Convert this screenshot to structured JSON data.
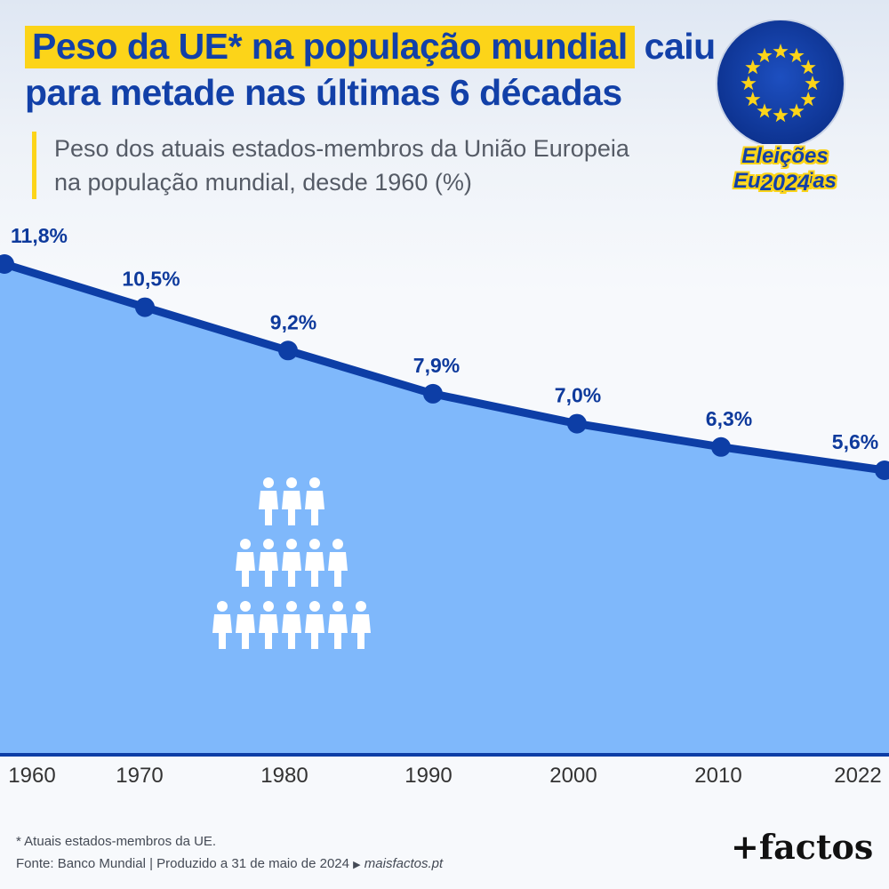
{
  "header": {
    "title_highlight": "Peso da UE* na população mundial",
    "title_rest": "caiu",
    "title_line2": "para metade nas últimas 6 décadas",
    "subtitle_line1": "Peso dos atuais estados-membros da União Europeia",
    "subtitle_line2": "na população mundial, desde 1960 (%)"
  },
  "badge": {
    "line1": "Eleições Europeias",
    "line2": "2024",
    "icon": "eu-flag-stars-icon",
    "colors": {
      "blue": "#1240a8",
      "yellow": "#fcd419"
    }
  },
  "chart_data": {
    "type": "area",
    "title": "Peso dos atuais estados-membros da União Europeia na população mundial, desde 1960 (%)",
    "x": [
      "1960",
      "1970",
      "1980",
      "1990",
      "2000",
      "2010",
      "2022"
    ],
    "values": [
      11.8,
      10.5,
      9.2,
      7.9,
      7.0,
      6.3,
      5.6
    ],
    "value_labels": [
      "11,8%",
      "10,5%",
      "9,2%",
      "7,9%",
      "7,0%",
      "6,3%",
      "5,6%"
    ],
    "grid": false,
    "legend": "none",
    "colors": {
      "line": "#0d3ea6",
      "area": "#7fb8fb",
      "axis": "#0d3ea6"
    },
    "decoration_icon": "population-people-icon"
  },
  "footer": {
    "footnote": "* Atuais estados-membros da UE.",
    "source": "Fonte: Banco Mundial  |  Produzido a 31 de maio de 2024",
    "site": "maisfactos.pt",
    "logo": "+factos"
  }
}
